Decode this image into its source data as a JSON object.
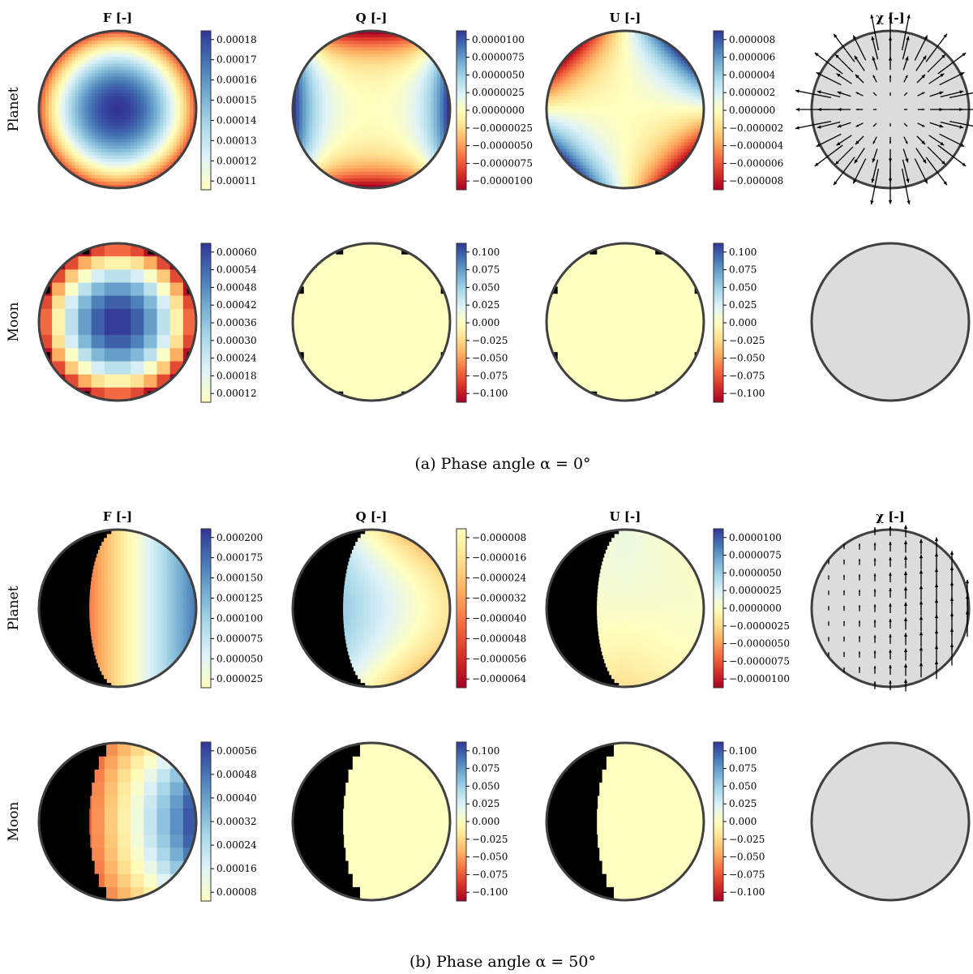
{
  "figure_title": "",
  "panels": [
    {
      "id": "a",
      "caption": "(a) Phase angle α = 0°",
      "column_titles": [
        "F [-]",
        "Q [-]",
        "U [-]",
        "χ [-]"
      ],
      "row_labels": [
        "Planet",
        "Moon"
      ],
      "dark_fraction": 0.0
    },
    {
      "id": "b",
      "caption": "(b) Phase angle α = 50°",
      "column_titles": [
        "F [-]",
        "Q [-]",
        "U [-]",
        "χ [-]"
      ],
      "row_labels": [
        "Planet",
        "Moon"
      ],
      "dark_fraction": 0.32
    }
  ],
  "chart_data": [
    {
      "type": "heatmap",
      "panel": "a",
      "row": "Planet",
      "column": "F [-]",
      "field": "limb-darkened disk, max at center",
      "colormap": "RdYlBu",
      "clim": [
        0.000105,
        0.000188
      ],
      "colorbar_ticks": [
        "0.00011",
        "0.00012",
        "0.00013",
        "0.00014",
        "0.00015",
        "0.00016",
        "0.00017",
        "0.00018"
      ]
    },
    {
      "type": "heatmap",
      "panel": "a",
      "row": "Planet",
      "column": "Q [-]",
      "field": "positive at left/right limbs, negative at top/bottom limbs",
      "colormap": "RdYlBu",
      "clim": [
        -1e-05,
        1e-05
      ],
      "colorbar_ticks": [
        "−0.0000100",
        "−0.0000075",
        "−0.0000050",
        "−0.0000025",
        "0.0000000",
        "0.0000025",
        "0.0000050",
        "0.0000075",
        "0.0000100"
      ]
    },
    {
      "type": "heatmap",
      "panel": "a",
      "row": "Planet",
      "column": "U [-]",
      "field": "positive at upper-left/lower-right, negative at upper-right/lower-left",
      "colormap": "RdYlBu",
      "clim": [
        -9e-06,
        9e-06
      ],
      "colorbar_ticks": [
        "−0.000008",
        "−0.000006",
        "−0.000004",
        "−0.000002",
        "0.000000",
        "0.000002",
        "0.000004",
        "0.000006",
        "0.000008"
      ]
    },
    {
      "type": "heatmap",
      "panel": "a",
      "row": "Planet",
      "column": "χ [-]",
      "field": "radial polarization direction vectors, length grows towards limb",
      "quiver": true
    },
    {
      "type": "heatmap",
      "panel": "a",
      "row": "Moon",
      "column": "F [-]",
      "field": "coarse pixelated limb-darkened disk",
      "colormap": "RdYlBu",
      "clim": [
        8e-05,
        0.00064
      ],
      "colorbar_ticks": [
        "0.00012",
        "0.00018",
        "0.00024",
        "0.00030",
        "0.00036",
        "0.00042",
        "0.00048",
        "0.00054",
        "0.00060"
      ]
    },
    {
      "type": "heatmap",
      "panel": "a",
      "row": "Moon",
      "column": "Q [-]",
      "field": "uniform zero",
      "colormap": "RdYlBu",
      "clim": [
        -0.1,
        0.1
      ],
      "colorbar_ticks": [
        "−0.100",
        "−0.075",
        "−0.050",
        "−0.025",
        "0.000",
        "0.025",
        "0.050",
        "0.075",
        "0.100"
      ]
    },
    {
      "type": "heatmap",
      "panel": "a",
      "row": "Moon",
      "column": "U [-]",
      "field": "uniform zero",
      "colormap": "RdYlBu",
      "clim": [
        -0.1,
        0.1
      ],
      "colorbar_ticks": [
        "−0.100",
        "−0.075",
        "−0.050",
        "−0.025",
        "0.000",
        "0.025",
        "0.050",
        "0.075",
        "0.100"
      ]
    },
    {
      "type": "heatmap",
      "panel": "a",
      "row": "Moon",
      "column": "χ [-]",
      "field": "empty",
      "quiver": true
    },
    {
      "type": "heatmap",
      "panel": "b",
      "row": "Planet",
      "column": "F [-]",
      "field": "increasing from terminator to right limb",
      "colormap": "RdYlBu",
      "clim": [
        0.0,
        0.000215
      ],
      "colorbar_ticks": [
        "0.000025",
        "0.000050",
        "0.000075",
        "0.000100",
        "0.000125",
        "0.000150",
        "0.000175",
        "0.000200"
      ]
    },
    {
      "type": "heatmap",
      "panel": "b",
      "row": "Planet",
      "column": "Q [-]",
      "field": "negative everywhere, most negative at upper-right limb",
      "colormap": "RdYlBu",
      "clim": [
        -7.2e-05,
        0.0
      ],
      "colorbar_ticks": [
        "−0.000064",
        "−0.000056",
        "−0.000048",
        "−0.000040",
        "−0.000032",
        "−0.000024",
        "−0.000016",
        "−0.000008"
      ]
    },
    {
      "type": "heatmap",
      "panel": "b",
      "row": "Planet",
      "column": "U [-]",
      "field": "weak pattern near zero",
      "colormap": "RdYlBu",
      "clim": [
        -1e-05,
        1e-05
      ],
      "colorbar_ticks": [
        "−0.0000100",
        "−0.0000075",
        "−0.0000050",
        "−0.0000025",
        "0.0000000",
        "0.0000025",
        "0.0000050",
        "0.0000075",
        "0.0000100"
      ]
    },
    {
      "type": "heatmap",
      "panel": "b",
      "row": "Planet",
      "column": "χ [-]",
      "field": "vertical polarization vectors growing to the right",
      "quiver": true
    },
    {
      "type": "heatmap",
      "panel": "b",
      "row": "Moon",
      "column": "F [-]",
      "field": "coarse pixels increasing to the right",
      "colormap": "RdYlBu",
      "clim": [
        0.0,
        0.00062
      ],
      "colorbar_ticks": [
        "0.00008",
        "0.00016",
        "0.00024",
        "0.00032",
        "0.00040",
        "0.00048",
        "0.00056"
      ]
    },
    {
      "type": "heatmap",
      "panel": "b",
      "row": "Moon",
      "column": "Q [-]",
      "field": "uniform zero",
      "colormap": "RdYlBu",
      "clim": [
        -0.1,
        0.1
      ],
      "colorbar_ticks": [
        "−0.100",
        "−0.075",
        "−0.050",
        "−0.025",
        "0.000",
        "0.025",
        "0.050",
        "0.075",
        "0.100"
      ]
    },
    {
      "type": "heatmap",
      "panel": "b",
      "row": "Moon",
      "column": "U [-]",
      "field": "uniform zero",
      "colormap": "RdYlBu",
      "clim": [
        -0.1,
        0.1
      ],
      "colorbar_ticks": [
        "−0.100",
        "−0.075",
        "−0.050",
        "−0.025",
        "0.000",
        "0.025",
        "0.050",
        "0.075",
        "0.100"
      ]
    },
    {
      "type": "heatmap",
      "panel": "b",
      "row": "Moon",
      "column": "χ [-]",
      "field": "empty",
      "quiver": true
    }
  ],
  "colors": {
    "disk_outline": "#404040",
    "chi_fill": "#dcdcdc",
    "night_side": "#000000",
    "colormap_stops": [
      "#a50026",
      "#d73027",
      "#f46d43",
      "#fdae61",
      "#fee090",
      "#ffffbf",
      "#e0f3f8",
      "#abd9e9",
      "#74add1",
      "#4575b4",
      "#313695"
    ]
  }
}
